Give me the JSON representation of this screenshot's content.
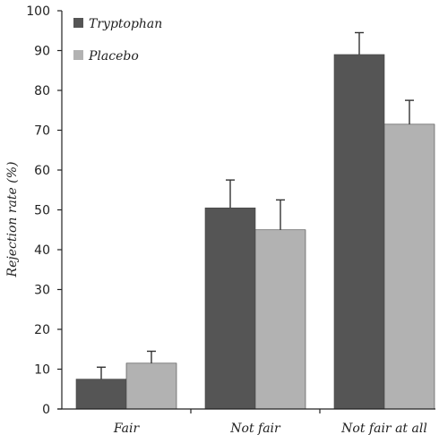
{
  "chart_data": {
    "type": "bar",
    "title": "",
    "xlabel": "",
    "ylabel": "Rejection rate (%)",
    "ylim": [
      0,
      100
    ],
    "yticks": [
      "0",
      "10",
      "20",
      "30",
      "40",
      "50",
      "60",
      "70",
      "80",
      "90",
      "100"
    ],
    "categories": [
      "Fair",
      "Not fair",
      "Not fair at all"
    ],
    "series": [
      {
        "name": "Tryptophan",
        "color": "#555555",
        "values": [
          7.5,
          50.5,
          89
        ],
        "errors": [
          3,
          7,
          5.5
        ]
      },
      {
        "name": "Placebo",
        "color": "#b2b2b2",
        "values": [
          11.5,
          45,
          71.5
        ],
        "errors": [
          3,
          7.5,
          6
        ]
      }
    ],
    "legend_position": "top-left",
    "grid": false
  }
}
